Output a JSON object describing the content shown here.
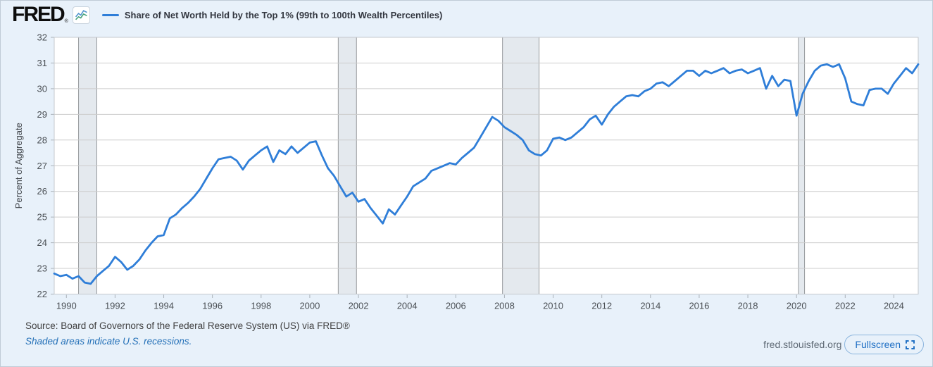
{
  "header": {
    "logo_text": "FRED",
    "logo_registered_mark": "®",
    "legend": {
      "series_label": "Share of Net Worth Held by the Top 1% (99th to 100th Wealth Percentiles)",
      "series_color": "#2f7ed8"
    }
  },
  "chart_data": {
    "type": "line",
    "title": "Share of Net Worth Held by the Top 1% (99th to 100th Wealth Percentiles)",
    "xlabel": "",
    "ylabel": "Percent of Aggregate",
    "ylim": [
      22,
      32
    ],
    "y_ticks": [
      22,
      23,
      24,
      25,
      26,
      27,
      28,
      29,
      30,
      31,
      32
    ],
    "x_tick_labels": [
      "1990",
      "1992",
      "1994",
      "1996",
      "1998",
      "2000",
      "2002",
      "2004",
      "2006",
      "2008",
      "2010",
      "2012",
      "2014",
      "2016",
      "2018",
      "2020",
      "2022",
      "2024"
    ],
    "x_range_years": [
      1989.5,
      2025.0
    ],
    "frequency": "quarterly",
    "start_period": "1989 Q3",
    "end_period": "2025 Q1",
    "grid": "horizontal",
    "legend_position": "top",
    "line_color": "#2f7ed8",
    "recession_fill": "#e4e9ee",
    "recession_edge": "#96999c",
    "values": [
      22.8,
      22.7,
      22.75,
      22.6,
      22.7,
      22.45,
      22.4,
      22.7,
      22.9,
      23.1,
      23.45,
      23.25,
      22.95,
      23.1,
      23.35,
      23.7,
      24.0,
      24.25,
      24.3,
      24.95,
      25.1,
      25.35,
      25.55,
      25.8,
      26.1,
      26.5,
      26.9,
      27.25,
      27.3,
      27.35,
      27.2,
      26.85,
      27.2,
      27.4,
      27.6,
      27.75,
      27.15,
      27.6,
      27.45,
      27.75,
      27.5,
      27.7,
      27.9,
      27.95,
      27.4,
      26.9,
      26.6,
      26.2,
      25.8,
      25.95,
      25.6,
      25.7,
      25.35,
      25.05,
      24.75,
      25.3,
      25.1,
      25.45,
      25.8,
      26.2,
      26.35,
      26.5,
      26.8,
      26.9,
      27.0,
      27.1,
      27.05,
      27.3,
      27.5,
      27.7,
      28.1,
      28.5,
      28.9,
      28.75,
      28.5,
      28.35,
      28.2,
      28.0,
      27.6,
      27.45,
      27.4,
      27.6,
      28.05,
      28.1,
      28.0,
      28.1,
      28.3,
      28.5,
      28.8,
      28.95,
      28.6,
      29.0,
      29.3,
      29.5,
      29.7,
      29.75,
      29.7,
      29.9,
      30.0,
      30.2,
      30.25,
      30.1,
      30.3,
      30.5,
      30.7,
      30.7,
      30.5,
      30.7,
      30.6,
      30.7,
      30.8,
      30.6,
      30.7,
      30.75,
      30.6,
      30.7,
      30.8,
      30.0,
      30.5,
      30.1,
      30.35,
      30.3,
      28.95,
      29.8,
      30.3,
      30.7,
      30.9,
      30.95,
      30.85,
      30.95,
      30.4,
      29.5,
      29.4,
      29.35,
      29.95,
      30.0,
      30.0,
      29.8,
      30.2,
      30.5,
      30.8,
      30.6,
      30.95
    ],
    "recessions": [
      [
        1990.5,
        1991.25
      ],
      [
        2001.17,
        2001.92
      ],
      [
        2007.92,
        2009.42
      ],
      [
        2020.08,
        2020.33
      ]
    ]
  },
  "footer": {
    "source_line": "Source: Board of Governors of the Federal Reserve System (US) via FRED®",
    "recession_note": "Shaded areas indicate U.S. recessions.",
    "site_url": "fred.stlouisfed.org",
    "fullscreen_label": "Fullscreen"
  }
}
